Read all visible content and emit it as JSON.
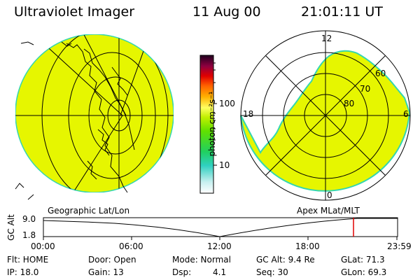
{
  "header": {
    "title": "Ultraviolet Imager",
    "date": "11 Aug 00",
    "time": "21:01:11 UT"
  },
  "colorbar": {
    "unit_label": "photon cm⁻²s⁻¹",
    "ticks": [
      "100",
      "10"
    ]
  },
  "polar_plot": {
    "mlt_labels": [
      "12",
      "18",
      "6",
      "0"
    ],
    "lat_labels": [
      "60",
      "70",
      "80"
    ]
  },
  "map_labels": {
    "left": "Geographic Lat/Lon",
    "right": "Apex MLat/MLT"
  },
  "orbit_panel": {
    "ylabel": "GC Alt",
    "yticks": [
      "9.0",
      "1.8"
    ],
    "xticks": [
      "00:00",
      "06:00",
      "12:00",
      "18:00",
      "23:59"
    ],
    "marker_time": "21:01"
  },
  "info": {
    "flt": "Flt: HOME",
    "ip": "IP: 18.0",
    "door": "Door: Open",
    "gain": "Gain: 13",
    "mode": "Mode: Normal",
    "dsp_label": "Dsp:",
    "dsp_value": "4.1",
    "gc_alt": "GC Alt: 9.4 Re",
    "seq": "Seq: 30",
    "glat": "GLat: 71.3",
    "glon": "GLon: 69.3"
  },
  "colors": {
    "image_fill": "#e6f600",
    "edge": "#33d6b0"
  }
}
